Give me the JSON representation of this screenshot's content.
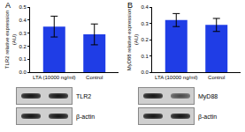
{
  "chart_data": [
    {
      "type": "bar",
      "annotations": [
        {
          "text": "A"
        }
      ],
      "y_label": "TLR2 relative expression (AU)",
      "categories": [
        "LTA (10000 ng/ml)",
        "Control"
      ],
      "values": [
        0.35,
        0.29
      ],
      "error": [
        0.08,
        0.08
      ],
      "color": "#1f3de6",
      "ylim": [
        0,
        0.5
      ],
      "yticks": [
        {
          "value": 0,
          "label": "0.0"
        },
        0.1,
        0.2,
        0.3,
        0.4,
        0.5
      ],
      "grid": false,
      "blots": [
        "TLR2",
        "β-actin"
      ]
    },
    {
      "type": "bar",
      "annotations": [
        {
          "text": "B"
        }
      ],
      "y_label": "MyD88 relative expression (AU)",
      "categories": [
        "LTA (10000 ng/ml)",
        "Control"
      ],
      "values": [
        0.32,
        0.29
      ],
      "error": [
        0.04,
        0.04
      ],
      "color": "#1f3de6",
      "ylim": [
        0,
        0.4
      ],
      "yticks": [
        {
          "value": 0,
          "label": "0.0"
        },
        0.1,
        0.2,
        0.3,
        0.4
      ],
      "grid": false,
      "blots": [
        "MyD88",
        "β-actin"
      ]
    }
  ]
}
